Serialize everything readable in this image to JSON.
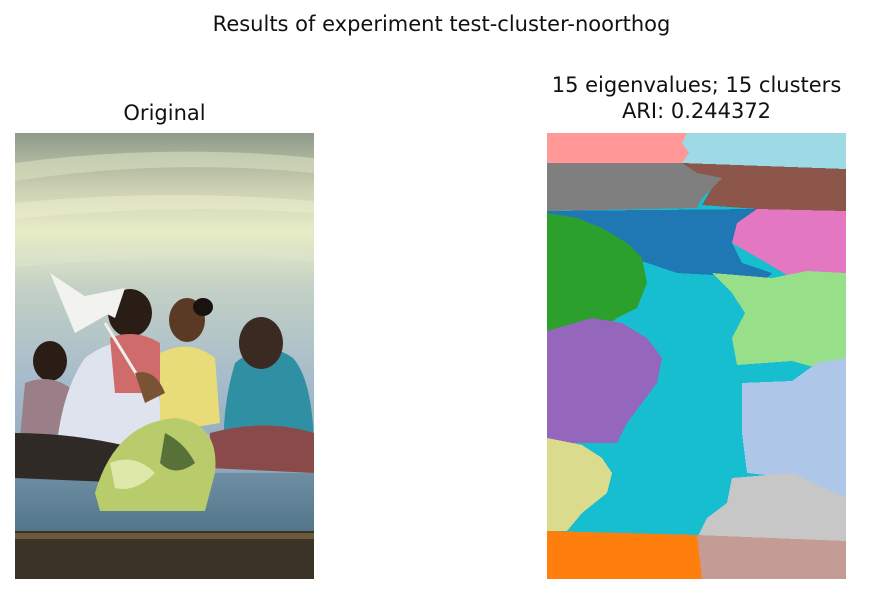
{
  "figure": {
    "suptitle": "Results of experiment test-cluster-noorthog"
  },
  "left_panel": {
    "title": "Original"
  },
  "right_panel": {
    "title_line1": "15 eigenvalues; 15 clusters",
    "title_line2": "ARI: 0.244372"
  },
  "colors": {
    "pink": "#ff9896",
    "light_blue": "#9edae5",
    "gray": "#7f7f7f",
    "brown": "#8c564b",
    "blue": "#1f77b4",
    "magenta": "#e377c2",
    "green": "#2ca02c",
    "light_green": "#98df8a",
    "cyan": "#17becf",
    "purple": "#9467bd",
    "periwinkle": "#aec7e8",
    "olive": "#dbdb8d",
    "silver": "#c7c7c7",
    "orange": "#ff7f0e",
    "rose_brown": "#c49c94"
  }
}
